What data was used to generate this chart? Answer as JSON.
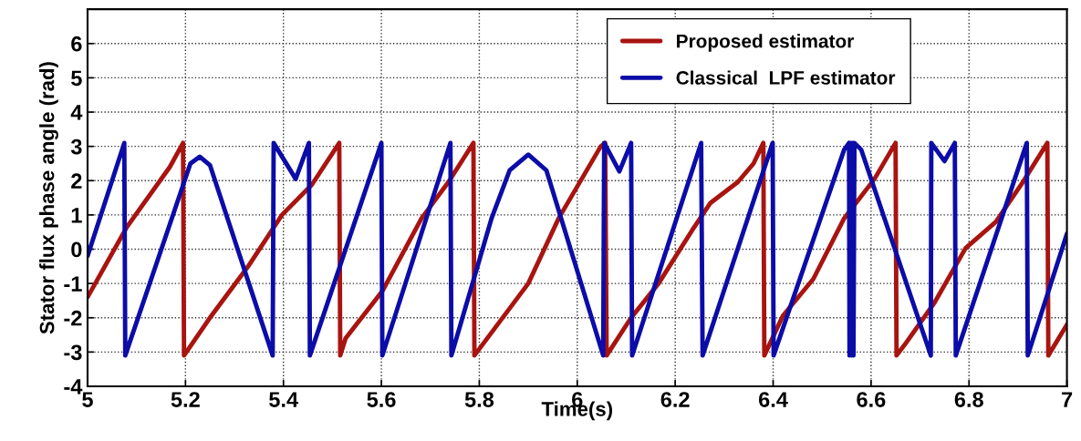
{
  "chart_data": {
    "type": "line",
    "xlabel": "Time(s)",
    "ylabel": "Stator flux phase angle (rad)",
    "xlim": [
      5,
      7
    ],
    "xticks": [
      5,
      5.2,
      5.4,
      5.6,
      5.8,
      6,
      6.2,
      6.4,
      6.6,
      6.8,
      7
    ],
    "ylim": [
      -4,
      7
    ],
    "yticks": [
      -4,
      -3,
      -2,
      -1,
      0,
      1,
      2,
      3,
      4,
      5,
      6
    ],
    "grid": true,
    "legend": "top right",
    "marker": "none",
    "line_style": "solid",
    "series": [
      {
        "name": "Proposed estimator",
        "color": "#a81410",
        "x": [
          5,
          5.08,
          5.168,
          5.195,
          5.197,
          5.253,
          5.328,
          5.397,
          5.458,
          5.514,
          5.516,
          5.527,
          5.603,
          5.682,
          5.737,
          5.788,
          5.79,
          5.9,
          5.962,
          6.048,
          6.057,
          6.06,
          6.11,
          6.166,
          6.235,
          6.272,
          6.328,
          6.36,
          6.38,
          6.382,
          6.42,
          6.482,
          6.545,
          6.607,
          6.65,
          6.652,
          6.668,
          6.73,
          6.793,
          6.855,
          6.91,
          6.96,
          6.962,
          7
        ],
        "values": [
          -1.4,
          0.64,
          2.4,
          3.1,
          -3.1,
          -1.94,
          -0.5,
          1.0,
          1.88,
          3.1,
          -3.1,
          -2.6,
          -1.2,
          0.9,
          1.96,
          3.1,
          -3.1,
          -1.0,
          0.9,
          3.0,
          3.1,
          -3.1,
          -2.0,
          -1.0,
          0.56,
          1.35,
          1.96,
          2.5,
          3.1,
          -3.1,
          -1.94,
          -0.87,
          0.9,
          2.05,
          3.1,
          -3.1,
          -2.8,
          -1.55,
          0.03,
          0.8,
          1.96,
          3.1,
          -3.1,
          -2.2
        ]
      },
      {
        "name": "Classical  LPF estimator",
        "color": "#0c0ca8",
        "x": [
          5,
          5.075,
          5.077,
          5.193,
          5.21,
          5.229,
          5.25,
          5.378,
          5.38,
          5.425,
          5.452,
          5.454,
          5.6,
          5.602,
          5.741,
          5.743,
          5.825,
          5.862,
          5.9,
          5.937,
          6.053,
          6.055,
          6.086,
          6.11,
          6.112,
          6.253,
          6.256,
          6.399,
          6.401,
          6.545,
          6.555,
          6.556,
          6.558,
          6.56,
          6.562,
          6.564,
          6.566,
          6.58,
          6.722,
          6.723,
          6.75,
          6.771,
          6.773,
          6.918,
          6.92,
          7
        ],
        "values": [
          -0.2,
          3.1,
          -3.1,
          1.78,
          2.5,
          2.7,
          2.45,
          -3.1,
          3.1,
          2.05,
          3.1,
          -3.1,
          3.1,
          -3.1,
          3.1,
          -3.1,
          0.9,
          2.3,
          2.76,
          2.3,
          -3.1,
          3.1,
          2.27,
          3.1,
          -3.1,
          3.1,
          -3.1,
          3.1,
          -3.1,
          2.9,
          3.1,
          -3.1,
          3.1,
          -3.1,
          3.1,
          -3.1,
          3.1,
          2.9,
          -3.1,
          3.1,
          2.57,
          3.1,
          -3.1,
          3.1,
          -3.1,
          0.45
        ]
      }
    ]
  }
}
